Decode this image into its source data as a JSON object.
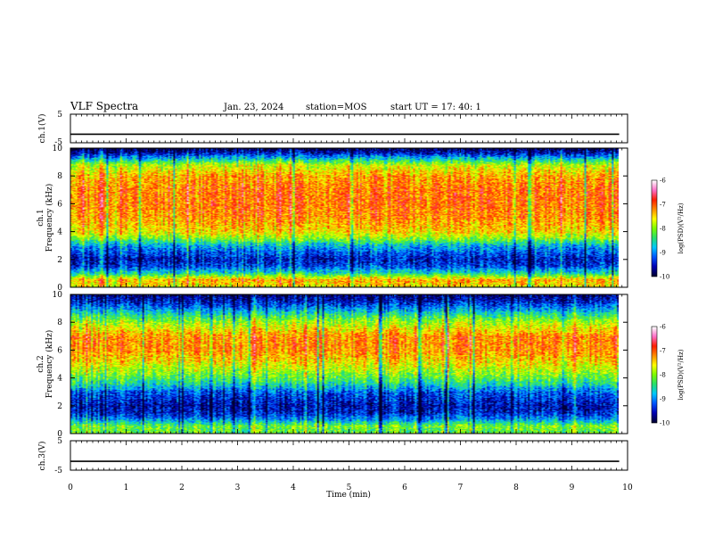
{
  "header": {
    "title": "VLF Spectra",
    "date": "Jan. 23, 2024",
    "station": "station=MOS",
    "start_ut": "start UT =  17: 40: 1"
  },
  "colors": {
    "colormap": [
      "#000033",
      "#0000b4",
      "#0055ff",
      "#00c8ff",
      "#28e06e",
      "#7cfc00",
      "#ffff00",
      "#ff8c00",
      "#ff1e00",
      "#ff6ec8",
      "#ffffff"
    ]
  },
  "chart_data": [
    {
      "type": "line",
      "panel": "ch1-waveform",
      "ylabel": "ch.1(V)",
      "ylim": [
        -5,
        5
      ],
      "ytick_labels": [
        "5",
        "-5"
      ],
      "x": [
        0,
        10
      ],
      "series": [
        {
          "values": [
            -2,
            -2
          ]
        }
      ]
    },
    {
      "type": "heatmap",
      "panel": "ch1-spectrogram",
      "ylabel": "Frequency (kHz)",
      "channel_label": "ch.1",
      "xlim": [
        0,
        9.85
      ],
      "ylim": [
        0,
        10
      ],
      "ytick_labels": [
        "0",
        "2",
        "4",
        "6",
        "8",
        "10"
      ],
      "colorbar": {
        "label": "log(PSD)(V²/Hz)",
        "range": [
          -10,
          -6
        ],
        "tick_labels": [
          "-6",
          "-7",
          "-8",
          "-9",
          "-10"
        ]
      },
      "profile_log_psd": {
        "freq_khz": [
          0,
          0.5,
          1,
          1.5,
          2,
          2.5,
          3,
          3.5,
          4,
          5,
          6,
          7,
          8,
          8.8,
          9.3,
          9.7,
          10
        ],
        "level": [
          -7.6,
          -7.3,
          -8.6,
          -9.3,
          -9.5,
          -9.2,
          -8.8,
          -8.0,
          -7.5,
          -7.2,
          -7.1,
          -7.1,
          -7.3,
          -7.8,
          -8.8,
          -9.6,
          -9.9
        ]
      }
    },
    {
      "type": "heatmap",
      "panel": "ch2-spectrogram",
      "ylabel": "Frequency (kHz)",
      "channel_label": "ch.2",
      "xlim": [
        0,
        9.85
      ],
      "ylim": [
        0,
        10
      ],
      "ytick_labels": [
        "0",
        "2",
        "4",
        "6",
        "8",
        "10"
      ],
      "colorbar": {
        "label": "log(PSD)(V²/Hz)",
        "range": [
          -10,
          -6
        ],
        "tick_labels": [
          "-6",
          "-7",
          "-8",
          "-9",
          "-10"
        ]
      },
      "profile_log_psd": {
        "freq_khz": [
          0,
          0.5,
          1,
          1.5,
          2,
          2.5,
          3,
          3.5,
          4,
          5,
          6,
          7,
          8,
          8.5,
          9,
          9.5,
          10
        ],
        "level": [
          -8.2,
          -8.1,
          -9.0,
          -9.5,
          -9.6,
          -9.4,
          -9.2,
          -8.6,
          -8.2,
          -7.6,
          -7.2,
          -7.2,
          -7.9,
          -8.4,
          -9.0,
          -9.5,
          -9.8
        ]
      }
    },
    {
      "type": "line",
      "panel": "ch3-waveform",
      "ylabel": "ch.3(V)",
      "ylim": [
        -5,
        5
      ],
      "ytick_labels": [
        "5",
        "-5"
      ],
      "x": [
        0,
        10
      ],
      "series": [
        {
          "values": [
            -2,
            -2
          ]
        }
      ]
    }
  ],
  "xaxis": {
    "label": "Time (min)",
    "range": [
      0,
      10
    ],
    "tick_labels": [
      "0",
      "1",
      "2",
      "3",
      "4",
      "5",
      "6",
      "7",
      "8",
      "9",
      "10"
    ]
  }
}
